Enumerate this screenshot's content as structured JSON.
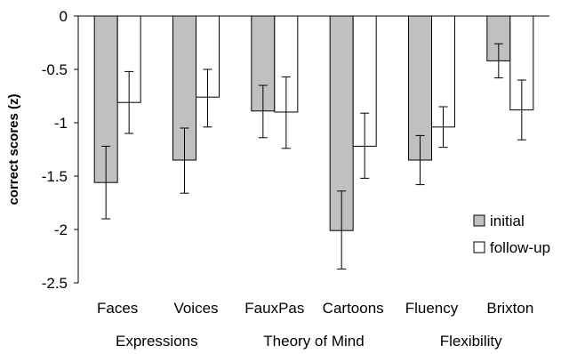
{
  "chart_data": {
    "type": "bar",
    "ylabel": "correct scores (z)",
    "ylim": [
      -2.5,
      0
    ],
    "yticks": [
      "0",
      "-0.5",
      "-1",
      "-1.5",
      "-2",
      "-2.5"
    ],
    "ytick_values": [
      0,
      -0.5,
      -1,
      -1.5,
      -2,
      -2.5
    ],
    "categories": [
      "Faces",
      "Voices",
      "FauxPas",
      "Cartoons",
      "Fluency",
      "Brixton"
    ],
    "groups": [
      {
        "label": "Expressions",
        "categories": [
          "Faces",
          "Voices"
        ]
      },
      {
        "label": "Theory of Mind",
        "categories": [
          "FauxPas",
          "Cartoons"
        ]
      },
      {
        "label": "Flexibility",
        "categories": [
          "Fluency",
          "Brixton"
        ]
      }
    ],
    "series": [
      {
        "name": "initial",
        "color": "#c0c0c0",
        "values": [
          -1.56,
          -1.35,
          -0.89,
          -2.01,
          -1.35,
          -0.42
        ],
        "error_low": [
          -1.9,
          -1.66,
          -1.14,
          -2.37,
          -1.58,
          -0.58
        ],
        "error_high": [
          -1.22,
          -1.05,
          -0.65,
          -1.64,
          -1.12,
          -0.26
        ]
      },
      {
        "name": "follow-up",
        "color": "#ffffff",
        "values": [
          -0.81,
          -0.76,
          -0.9,
          -1.22,
          -1.04,
          -0.88
        ],
        "error_low": [
          -1.1,
          -1.04,
          -1.24,
          -1.52,
          -1.23,
          -1.16
        ],
        "error_high": [
          -0.52,
          -0.5,
          -0.57,
          -0.91,
          -0.85,
          -0.6
        ]
      }
    ],
    "legend_position": "lower-right",
    "grid": false
  }
}
